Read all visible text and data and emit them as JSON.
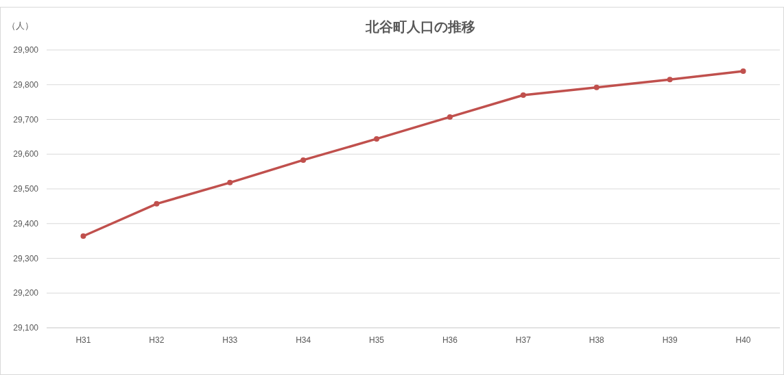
{
  "chart_data": {
    "type": "line",
    "title": "北谷町人口の推移",
    "ylabel": "（人）",
    "categories": [
      "H31",
      "H32",
      "H33",
      "H34",
      "H35",
      "H36",
      "H37",
      "H38",
      "H39",
      "H40"
    ],
    "series": [
      {
        "color": "#c0504d",
        "values": [
          29364,
          29457,
          29518,
          29583,
          29644,
          29707,
          29770,
          29792,
          29815,
          29839
        ]
      }
    ],
    "ylim": [
      29100,
      29900
    ],
    "yticks": [
      {
        "value": 29100,
        "label": "29,100"
      },
      {
        "value": 29200,
        "label": "29,200"
      },
      {
        "value": 29300,
        "label": "29,300"
      },
      {
        "value": 29400,
        "label": "29,400"
      },
      {
        "value": 29500,
        "label": "29,500"
      },
      {
        "value": 29600,
        "label": "29,600"
      },
      {
        "value": 29700,
        "label": "29,700"
      },
      {
        "value": 29800,
        "label": "29,800"
      },
      {
        "value": 29900,
        "label": "29,900"
      }
    ],
    "grid": "y",
    "marker": "circle",
    "line_style": "solid"
  }
}
